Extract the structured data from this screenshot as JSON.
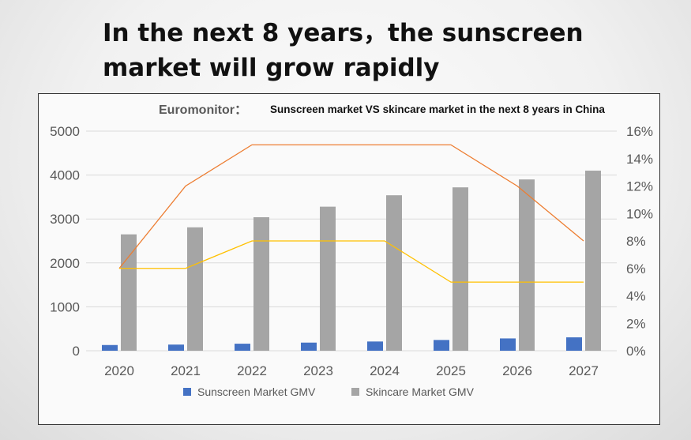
{
  "headline": "In the next 8 years，the sunscreen market will grow rapidly",
  "chart_data": {
    "type": "bar",
    "source": "Euromonitor：",
    "title": "Sunscreen market VS skincare market in the next 8 years in China",
    "categories": [
      "2020",
      "2021",
      "2022",
      "2023",
      "2024",
      "2025",
      "2026",
      "2027"
    ],
    "series": [
      {
        "name": "Sunscreen Market GMV",
        "type": "bar",
        "axis": "left",
        "color": "#4472c4",
        "values": [
          130,
          140,
          160,
          185,
          210,
          245,
          280,
          305
        ]
      },
      {
        "name": "Skincare Market GMV",
        "type": "bar",
        "axis": "left",
        "color": "#a5a5a5",
        "values": [
          2650,
          2810,
          3040,
          3280,
          3540,
          3720,
          3900,
          4100
        ]
      },
      {
        "type": "line",
        "axis": "right",
        "color": "#ed7d31",
        "values": [
          6,
          12,
          15,
          15,
          15,
          15,
          12,
          8
        ]
      },
      {
        "type": "line",
        "axis": "right",
        "color": "#ffc000",
        "values": [
          6,
          6,
          8,
          8,
          8,
          5,
          5,
          5
        ]
      }
    ],
    "left_axis": {
      "ylim": [
        0,
        5000
      ],
      "ticks": [
        "0",
        "1000",
        "2000",
        "3000",
        "4000",
        "5000"
      ]
    },
    "right_axis": {
      "ylim": [
        0,
        16
      ],
      "ticks": [
        "0%",
        "2%",
        "4%",
        "6%",
        "8%",
        "10%",
        "12%",
        "14%",
        "16%"
      ]
    },
    "grid": true,
    "legend": {
      "position": "bottom",
      "items": [
        "Sunscreen Market GMV",
        "Skincare Market GMV"
      ]
    }
  }
}
